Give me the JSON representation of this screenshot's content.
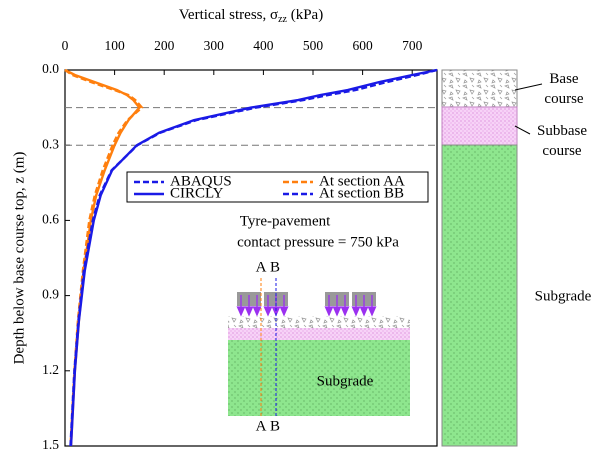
{
  "chart_data": {
    "type": "line",
    "x_label": "Vertical stress, σ",
    "x_label_sub": "zz",
    "x_label_unit": " (kPa)",
    "y_label": "Depth below base course top, z (m)",
    "xlim": [
      0,
      750
    ],
    "xticks": [
      0,
      100,
      200,
      300,
      400,
      500,
      600,
      700
    ],
    "ylim": [
      0,
      1.5
    ],
    "yticks": [
      {
        "value": 0,
        "label": "0.0"
      },
      {
        "value": 0.3,
        "label": "0.3"
      },
      {
        "value": 0.6,
        "label": "0.6"
      },
      {
        "value": 0.9,
        "label": "0.9"
      },
      {
        "value": 1.2,
        "label": "1.2"
      },
      {
        "value": 1.5,
        "label": "1.5"
      }
    ],
    "layer_boundaries": [
      0.15,
      0.3
    ],
    "depth": [
      0,
      0.02,
      0.05,
      0.08,
      0.1,
      0.12,
      0.15,
      0.2,
      0.25,
      0.3,
      0.4,
      0.5,
      0.6,
      0.8,
      1.0,
      1.2,
      1.5
    ],
    "series": [
      {
        "color": "#ff7f0e",
        "dash": true,
        "values": [
          0,
          15,
          55,
          100,
          128,
          142,
          155,
          126,
          108,
          96,
          76,
          60,
          49,
          36,
          26,
          19,
          11
        ]
      },
      {
        "color": "#ff7f0e",
        "dash": false,
        "values": [
          0,
          20,
          62,
          105,
          125,
          138,
          150,
          128,
          112,
          100,
          80,
          63,
          52,
          38,
          28,
          20,
          12
        ]
      },
      {
        "color": "#1a1ae6",
        "dash": true,
        "values": [
          750,
          710,
          645,
          585,
          530,
          480,
          385,
          265,
          192,
          146,
          94,
          70,
          56,
          38,
          27,
          19,
          11
        ]
      },
      {
        "color": "#1a1ae6",
        "dash": false,
        "values": [
          750,
          700,
          630,
          570,
          515,
          470,
          375,
          260,
          190,
          145,
          95,
          72,
          58,
          40,
          28,
          20,
          12
        ]
      }
    ],
    "legend": [
      {
        "name": "ABAQUS",
        "color": "#1a1ae6",
        "dash": true
      },
      {
        "name": "CIRCLY",
        "color": "#1a1ae6",
        "dash": false
      },
      {
        "name": "At section AA",
        "color": "#ff7f0e",
        "dash": true
      },
      {
        "name": "At section BB",
        "color": "#1a1ae6",
        "dash": true
      }
    ],
    "inset": {
      "title_line1": "Tyre-pavement",
      "title_line2": "contact pressure = 750 kPa",
      "section_a": "A",
      "section_b": "B",
      "subgrade": "Subgrade"
    },
    "layers": {
      "base": "Base\ncourse",
      "subbase": "Subbase\ncourse",
      "subgrade": "Subgrade"
    }
  }
}
